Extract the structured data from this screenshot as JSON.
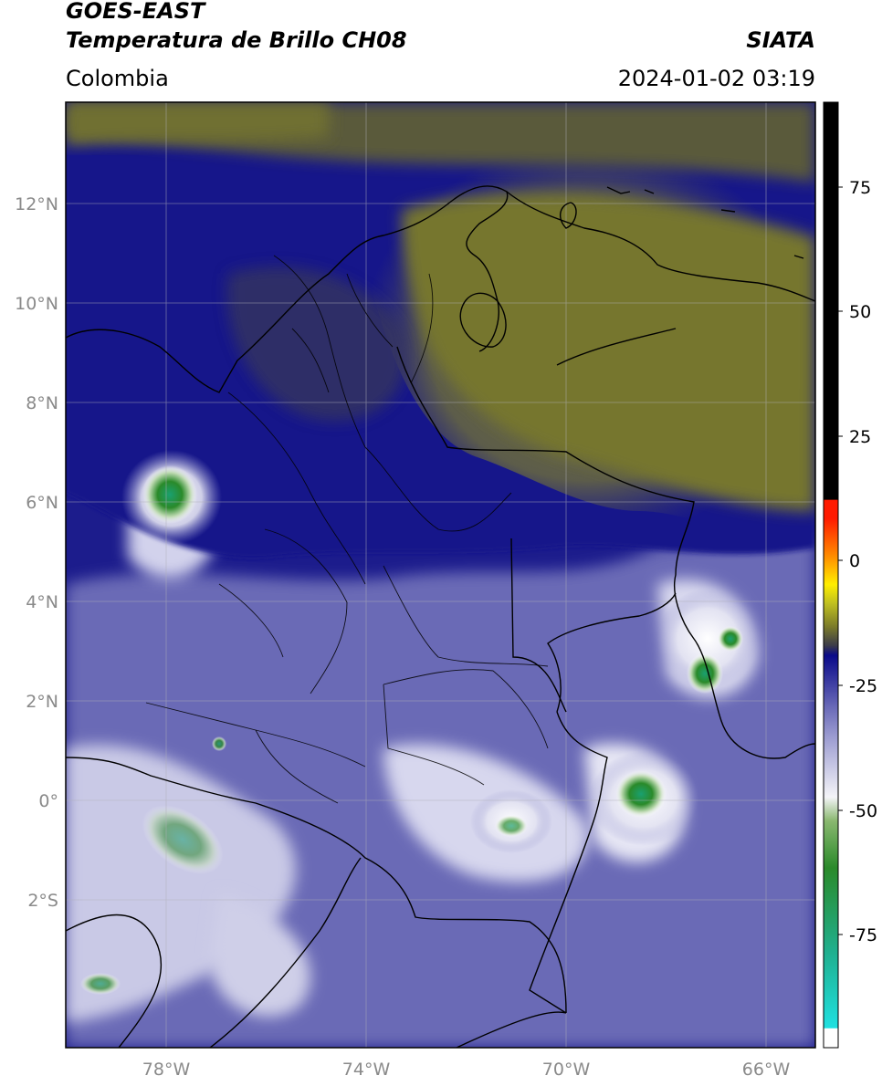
{
  "header": {
    "satellite": "GOES-EAST",
    "product": "Temperatura de Brillo CH08",
    "brand": "SIATA",
    "region": "Colombia",
    "datetime": "2024-01-02 03:19"
  },
  "map": {
    "lat_ticks": [
      "12°N",
      "10°N",
      "8°N",
      "6°N",
      "4°N",
      "2°N",
      "0°",
      "2°S"
    ],
    "lon_ticks": [
      "78°W",
      "74°W",
      "70°W",
      "66°W"
    ],
    "extent": {
      "lon": [
        -80,
        -65
      ],
      "lat": [
        -5,
        14
      ]
    },
    "grid": true
  },
  "colorbar": {
    "labels": [
      "75",
      "50",
      "25",
      "0",
      "-25",
      "-50",
      "-75"
    ],
    "range": [
      -100,
      90
    ],
    "colors": {
      "black": "#000000",
      "red": "#ff1a00",
      "orange": "#ff8c00",
      "yellow": "#ffee00",
      "olive": "#7a7a2a",
      "navy": "#0a0a8a",
      "periwinkle": "#6a6ab8",
      "white": "#f4f4f8",
      "green": "#2a8a2a",
      "teal": "#20b090",
      "cyan": "#20e0e0"
    }
  }
}
